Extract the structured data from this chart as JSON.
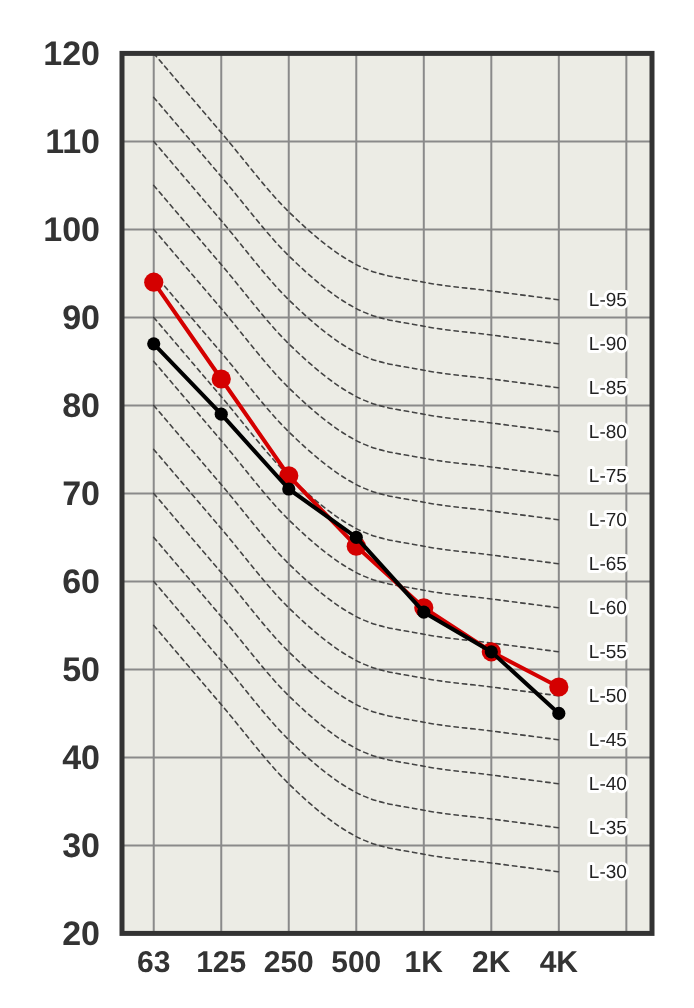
{
  "chart_data": {
    "type": "line",
    "categories": [
      "63",
      "125",
      "250",
      "500",
      "1K",
      "2K",
      "4K",
      null
    ],
    "ylim": [
      20,
      120
    ],
    "yticks": [
      20,
      30,
      40,
      50,
      60,
      70,
      80,
      90,
      100,
      110,
      120
    ],
    "grid": true,
    "marker": "circle",
    "line_style": "solid",
    "series": [
      {
        "color": "#d40000",
        "values": [
          94,
          83,
          72,
          64,
          57,
          52,
          48,
          null
        ]
      },
      {
        "color": "#000000",
        "values": [
          87,
          79,
          70.5,
          65,
          56.5,
          52,
          45,
          null
        ]
      },
      {
        "name": "L-95",
        "type": "line",
        "line_style": "dashed",
        "marker": "none",
        "color": "#444444",
        "values": [
          120,
          111,
          102,
          96,
          94,
          93,
          92,
          null
        ]
      },
      {
        "name": "L-90",
        "type": "line",
        "line_style": "dashed",
        "marker": "none",
        "color": "#444444",
        "values": [
          115,
          106,
          97,
          91,
          89,
          88,
          87,
          null
        ]
      },
      {
        "name": "L-85",
        "type": "line",
        "line_style": "dashed",
        "marker": "none",
        "color": "#444444",
        "values": [
          110,
          101,
          92,
          86,
          84,
          83,
          82,
          null
        ]
      },
      {
        "name": "L-80",
        "type": "line",
        "line_style": "dashed",
        "marker": "none",
        "color": "#444444",
        "values": [
          105,
          96,
          87,
          81,
          79,
          78,
          77,
          null
        ]
      },
      {
        "name": "L-75",
        "type": "line",
        "line_style": "dashed",
        "marker": "none",
        "color": "#444444",
        "values": [
          100,
          91,
          82,
          76,
          74,
          73,
          72,
          null
        ]
      },
      {
        "name": "L-70",
        "type": "line",
        "line_style": "dashed",
        "marker": "none",
        "color": "#444444",
        "values": [
          95,
          86,
          77,
          71,
          69,
          68,
          67,
          null
        ]
      },
      {
        "name": "L-65",
        "type": "line",
        "line_style": "dashed",
        "marker": "none",
        "color": "#444444",
        "values": [
          90,
          81,
          72,
          66,
          64,
          63,
          62,
          null
        ]
      },
      {
        "name": "L-60",
        "type": "line",
        "line_style": "dashed",
        "marker": "none",
        "color": "#444444",
        "values": [
          85,
          76,
          67,
          61,
          59,
          58,
          57,
          null
        ]
      },
      {
        "name": "L-55",
        "type": "line",
        "line_style": "dashed",
        "marker": "none",
        "color": "#444444",
        "values": [
          80,
          71,
          62,
          56,
          54,
          53,
          52,
          null
        ]
      },
      {
        "name": "L-50",
        "type": "line",
        "line_style": "dashed",
        "marker": "none",
        "color": "#444444",
        "values": [
          75,
          66,
          57,
          51,
          49,
          48,
          47,
          null
        ]
      },
      {
        "name": "L-45",
        "type": "line",
        "line_style": "dashed",
        "marker": "none",
        "color": "#444444",
        "values": [
          70,
          61,
          52,
          46,
          44,
          43,
          42,
          null
        ]
      },
      {
        "name": "L-40",
        "type": "line",
        "line_style": "dashed",
        "marker": "none",
        "color": "#444444",
        "values": [
          65,
          56,
          47,
          41,
          39,
          38,
          37,
          null
        ]
      },
      {
        "name": "L-35",
        "type": "line",
        "line_style": "dashed",
        "marker": "none",
        "color": "#444444",
        "values": [
          60,
          51,
          42,
          36,
          34,
          33,
          32,
          null
        ]
      },
      {
        "name": "L-30",
        "type": "line",
        "line_style": "dashed",
        "marker": "none",
        "color": "#444444",
        "values": [
          55,
          46,
          37,
          31,
          29,
          28,
          27,
          null
        ]
      }
    ]
  }
}
